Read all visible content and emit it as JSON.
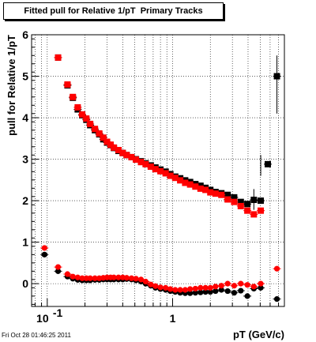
{
  "timestamp": "Fri Oct 28 01:46:25 2011",
  "chart_data": {
    "type": "scatter",
    "title": "Fitted pull for Relative 1/pT  Primary Tracks",
    "xlabel": "pT (GeV/c)",
    "ylabel": "pull for Relative 1/pT",
    "x_scale": "log",
    "xlim": [
      0.075,
      7.8
    ],
    "ylim": [
      -0.55,
      6.0
    ],
    "xticks": [
      {
        "value": 0.1,
        "label": "10",
        "exp": "-1"
      },
      {
        "value": 1,
        "label": "1",
        "exp": ""
      }
    ],
    "yticks": [
      "0",
      "1",
      "2",
      "3",
      "4",
      "5",
      "6"
    ],
    "grid": true,
    "colors": {
      "black": "#000000",
      "red": "#ff0000"
    },
    "series": [
      {
        "color": "#000000",
        "marker": "square",
        "x": [
          0.122,
          0.145,
          0.16,
          0.175,
          0.19,
          0.205,
          0.22,
          0.24,
          0.26,
          0.28,
          0.3,
          0.32,
          0.34,
          0.37,
          0.4,
          0.43,
          0.47,
          0.51,
          0.56,
          0.61,
          0.67,
          0.73,
          0.8,
          0.88,
          0.96,
          1.05,
          1.15,
          1.26,
          1.38,
          1.52,
          1.67,
          1.83,
          2.0,
          2.2,
          2.45,
          2.75,
          3.1,
          3.5,
          3.95,
          4.45,
          5.05,
          5.75,
          6.8
        ],
        "y": [
          5.45,
          4.78,
          4.48,
          4.2,
          4.06,
          3.95,
          3.82,
          3.7,
          3.6,
          3.48,
          3.4,
          3.34,
          3.27,
          3.2,
          3.15,
          3.1,
          3.05,
          3.0,
          2.95,
          2.9,
          2.85,
          2.8,
          2.75,
          2.7,
          2.64,
          2.58,
          2.54,
          2.49,
          2.45,
          2.4,
          2.36,
          2.31,
          2.26,
          2.21,
          2.18,
          2.14,
          2.08,
          1.97,
          1.92,
          2.02,
          2.0,
          2.88,
          5.0
        ]
      },
      {
        "color": "#ff0000",
        "marker": "square",
        "x": [
          0.122,
          0.145,
          0.16,
          0.175,
          0.19,
          0.205,
          0.22,
          0.24,
          0.26,
          0.28,
          0.3,
          0.32,
          0.34,
          0.37,
          0.4,
          0.43,
          0.47,
          0.51,
          0.56,
          0.61,
          0.67,
          0.73,
          0.8,
          0.88,
          0.96,
          1.05,
          1.15,
          1.26,
          1.38,
          1.52,
          1.67,
          1.83,
          2.0,
          2.2,
          2.45,
          2.75,
          3.1,
          3.5,
          3.95,
          4.45,
          5.05
        ],
        "y": [
          5.45,
          4.8,
          4.5,
          4.25,
          4.08,
          3.98,
          3.85,
          3.73,
          3.62,
          3.52,
          3.42,
          3.35,
          3.28,
          3.22,
          3.15,
          3.1,
          3.05,
          2.99,
          2.93,
          2.88,
          2.82,
          2.76,
          2.71,
          2.66,
          2.6,
          2.55,
          2.49,
          2.43,
          2.39,
          2.34,
          2.29,
          2.26,
          2.2,
          2.17,
          2.14,
          2.03,
          1.97,
          1.87,
          1.76,
          1.67,
          1.76
        ]
      },
      {
        "color": "#000000",
        "marker": "circle",
        "x": [
          0.095,
          0.122,
          0.145,
          0.16,
          0.175,
          0.19,
          0.205,
          0.22,
          0.24,
          0.26,
          0.28,
          0.3,
          0.32,
          0.34,
          0.37,
          0.4,
          0.43,
          0.47,
          0.51,
          0.56,
          0.61,
          0.67,
          0.73,
          0.8,
          0.88,
          0.96,
          1.05,
          1.15,
          1.26,
          1.38,
          1.52,
          1.67,
          1.83,
          2.0,
          2.2,
          2.45,
          2.75,
          3.1,
          3.5,
          3.95,
          4.45,
          5.05,
          6.8
        ],
        "y": [
          0.7,
          0.3,
          0.17,
          0.12,
          0.09,
          0.08,
          0.08,
          0.08,
          0.09,
          0.09,
          0.1,
          0.1,
          0.1,
          0.1,
          0.1,
          0.1,
          0.11,
          0.1,
          0.08,
          0.05,
          0.0,
          -0.05,
          -0.1,
          -0.13,
          -0.15,
          -0.18,
          -0.2,
          -0.22,
          -0.23,
          -0.23,
          -0.22,
          -0.21,
          -0.2,
          -0.2,
          -0.18,
          -0.15,
          -0.18,
          -0.22,
          -0.17,
          -0.3,
          -0.12,
          -0.1,
          -0.37
        ]
      },
      {
        "color": "#ff0000",
        "marker": "circle",
        "x": [
          0.095,
          0.122,
          0.145,
          0.16,
          0.175,
          0.19,
          0.205,
          0.22,
          0.24,
          0.26,
          0.28,
          0.3,
          0.32,
          0.34,
          0.37,
          0.4,
          0.43,
          0.47,
          0.51,
          0.56,
          0.61,
          0.67,
          0.73,
          0.8,
          0.88,
          0.96,
          1.05,
          1.15,
          1.26,
          1.38,
          1.52,
          1.67,
          1.83,
          2.0,
          2.2,
          2.45,
          2.75,
          3.1,
          3.5,
          3.95,
          4.45,
          5.05,
          6.8
        ],
        "y": [
          0.86,
          0.4,
          0.23,
          0.17,
          0.15,
          0.13,
          0.13,
          0.13,
          0.13,
          0.13,
          0.14,
          0.15,
          0.15,
          0.15,
          0.15,
          0.15,
          0.14,
          0.13,
          0.12,
          0.1,
          0.05,
          -0.02,
          -0.06,
          -0.09,
          -0.1,
          -0.13,
          -0.15,
          -0.15,
          -0.15,
          -0.13,
          -0.12,
          -0.1,
          -0.1,
          -0.1,
          -0.07,
          -0.05,
          0.0,
          -0.05,
          0.0,
          -0.03,
          -0.07,
          0.0,
          0.36
        ]
      }
    ]
  }
}
